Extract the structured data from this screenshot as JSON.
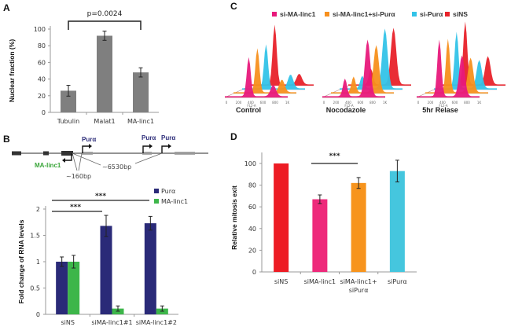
{
  "chart_data": [
    {
      "panel": "A",
      "type": "bar",
      "title": "",
      "annotation": "p=0.0024",
      "categories": [
        "Tubulin",
        "Malat1",
        "MA-linc1"
      ],
      "values": [
        26,
        92,
        48
      ],
      "errors": [
        6.5,
        5.5,
        5.5
      ],
      "xlabel": "",
      "ylabel": "Nuclear fraction (%)",
      "ylim": [
        0,
        100
      ],
      "yticks": [
        "0",
        "20",
        "40",
        "60",
        "80",
        "100"
      ],
      "color": "#7f7f7f",
      "significance": [
        {
          "from": "Tubulin",
          "to": "MA-linc1",
          "label": "p=0.0024"
        }
      ]
    },
    {
      "panel": "B",
      "type": "bar",
      "categories": [
        "siNS",
        "siMA-linc1#1",
        "siMA-linc1#2"
      ],
      "series": [
        {
          "name": "Purα",
          "color": "#2a2a78",
          "values": [
            1.0,
            1.68,
            1.73
          ],
          "errors": [
            0.09,
            0.2,
            0.13
          ]
        },
        {
          "name": "MA-linc1",
          "color": "#3db64a",
          "values": [
            1.0,
            0.11,
            0.11
          ],
          "errors": [
            0.12,
            0.05,
            0.05
          ]
        }
      ],
      "xlabel": "",
      "ylabel": "Fold change of RNA levels",
      "ylim": [
        0,
        2
      ],
      "yticks": [
        "0",
        "0.5",
        "1",
        "1.5",
        "2"
      ],
      "legend": "top-right",
      "significance": [
        {
          "from": "siNS",
          "to": "siMA-linc1#1",
          "label": "***"
        },
        {
          "from": "siNS",
          "to": "siMA-linc1#2",
          "label": "***"
        }
      ],
      "gene_diagram": {
        "labels": {
          "pura_1": "Purα",
          "pura_2": "Purα",
          "pura_3": "Purα",
          "ma_linc1": "MA-linc1",
          "dist_short": "~160bp",
          "dist_long": "~6530bp"
        }
      }
    },
    {
      "panel": "C",
      "type": "area",
      "title": "",
      "legend": [
        {
          "name": "si-MA-linc1",
          "color": "#e8197b"
        },
        {
          "name": "si-MA-linc1+si-Purα",
          "color": "#f7901e"
        },
        {
          "name": "si-Purα",
          "color": "#33c3e8"
        },
        {
          "name": "siNS",
          "color": "#e8222a"
        }
      ],
      "xaxis_label": "FL2-A",
      "xticks": [
        "0",
        "200",
        "400",
        "600",
        "800",
        "1K"
      ],
      "subplots": [
        "Control",
        "Nocodazole",
        "5hr Relase"
      ]
    },
    {
      "panel": "D",
      "type": "bar",
      "categories": [
        "siNS",
        "siMA-linc1",
        "siMA-linc1+ siPurα",
        "siPurα"
      ],
      "category_lines": [
        [
          "siNS"
        ],
        [
          "siMA-linc1"
        ],
        [
          "siMA-linc1+",
          "siPurα"
        ],
        [
          "siPurα"
        ]
      ],
      "values": [
        100,
        67,
        82,
        93
      ],
      "errors": [
        0,
        4,
        5,
        10
      ],
      "colors": [
        "#ed1c24",
        "#ee2a7b",
        "#f7941d",
        "#45c6de"
      ],
      "xlabel": "",
      "ylabel": "Relative mitosis exit",
      "ylim": [
        0,
        100
      ],
      "yticks": [
        "0",
        "20",
        "40",
        "60",
        "80",
        "100"
      ],
      "significance": [
        {
          "from": "siMA-linc1",
          "to": "siMA-linc1+ siPurα",
          "label": "***"
        }
      ]
    }
  ],
  "panel_labels": {
    "a": "A",
    "b": "B",
    "c": "C",
    "d": "D"
  }
}
